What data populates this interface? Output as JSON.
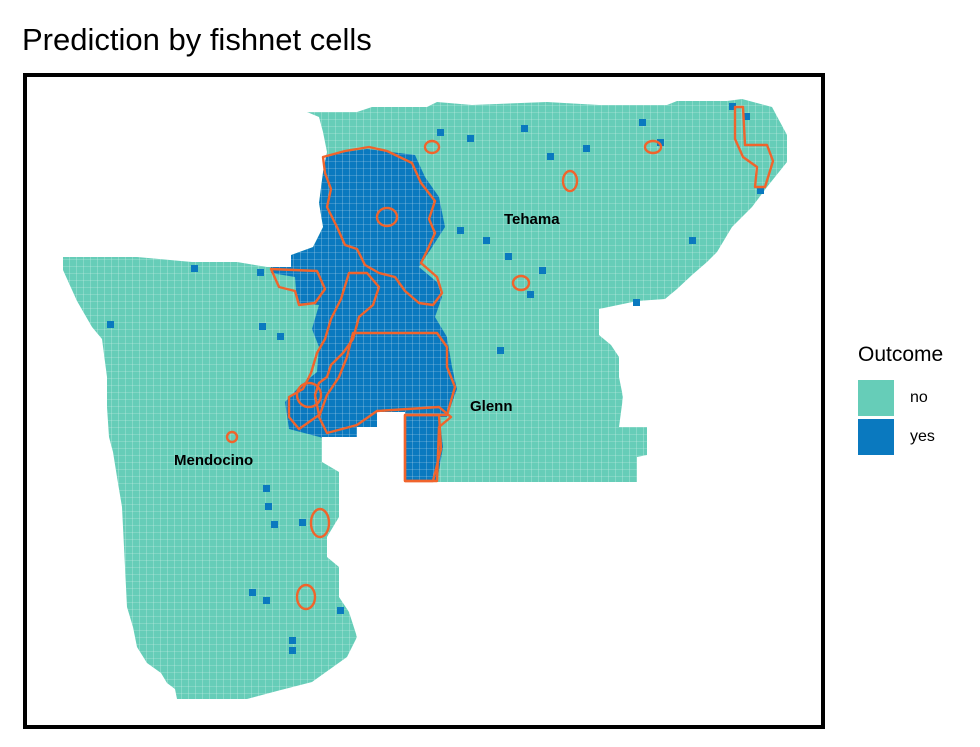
{
  "title": "Prediction by fishnet cells",
  "map": {
    "counties": [
      {
        "id": "tehama",
        "name": "Tehama"
      },
      {
        "id": "glenn",
        "name": "Glenn"
      },
      {
        "id": "mendocino",
        "name": "Mendocino"
      }
    ],
    "cell_colors": {
      "no": "#66CDB8",
      "yes": "#0A79BF"
    },
    "outline_color": "#F0642C",
    "grid_line_color": "#ffffff"
  },
  "legend": {
    "title": "Outcome",
    "items": [
      {
        "label": "no",
        "color": "#66CDB8"
      },
      {
        "label": "yes",
        "color": "#0A79BF"
      }
    ]
  }
}
